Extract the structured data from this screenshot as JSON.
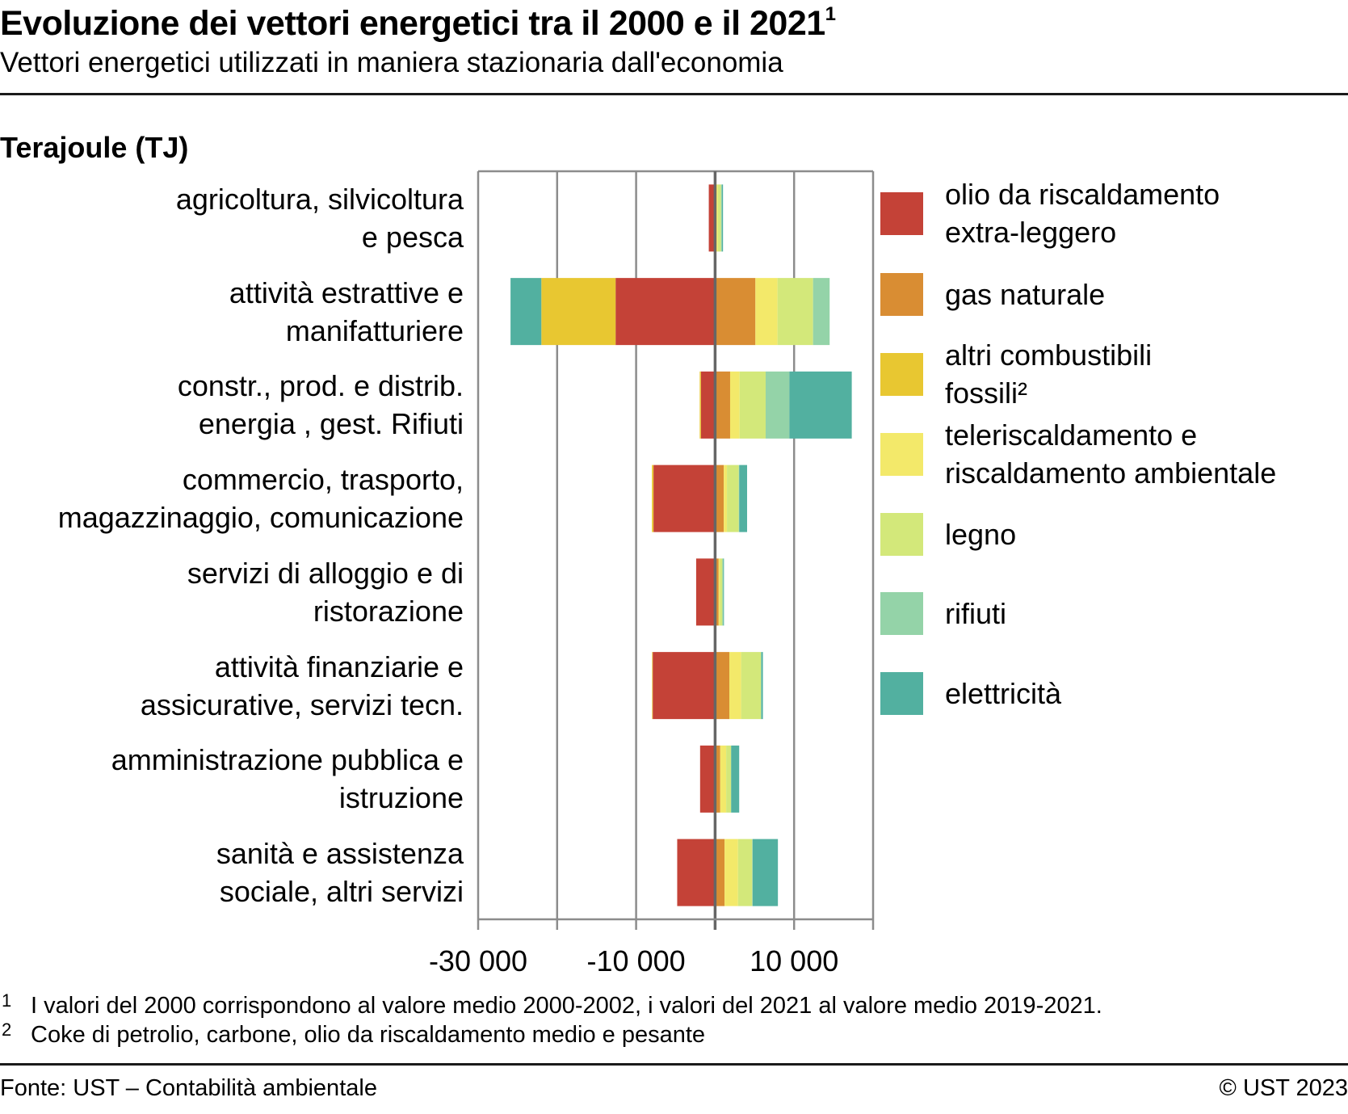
{
  "header": {
    "title": "Evoluzione dei vettori energetici tra il 2000 e il 2021",
    "title_footnote_mark": "1",
    "subtitle": "Vettori energetici utilizzati in maniera stazionaria dall'economia"
  },
  "chart_data": {
    "type": "bar",
    "orientation": "horizontal",
    "stacked": true,
    "title": "Evoluzione dei vettori energetici tra il 2000 e il 2021",
    "subtitle": "Vettori energetici utilizzati in maniera stazionaria dall'economia",
    "unit_label": "Terajoule (TJ)",
    "xlabel": "",
    "ylabel": "",
    "xlim": [
      -30000,
      20000
    ],
    "x_ticks": [
      -30000,
      -20000,
      -10000,
      0,
      10000,
      20000
    ],
    "x_tick_labels": [
      {
        "value": -30000,
        "label": "-30 000"
      },
      {
        "value": -10000,
        "label": "-10 000"
      },
      {
        "value": 10000,
        "label": "10 000"
      }
    ],
    "grid": true,
    "legend_position": "right",
    "categories": [
      [
        "agricoltura, silvicoltura",
        "e pesca"
      ],
      [
        "attività estrattive e",
        "manifatturiere"
      ],
      [
        "constr., prod. e distrib.",
        "energia , gest. Rifiuti"
      ],
      [
        "commercio, trasporto,",
        "magazzinaggio, comunicazione"
      ],
      [
        "servizi di alloggio e di",
        "ristorazione"
      ],
      [
        "attività finanziarie e",
        "assicurative, servizi tecn."
      ],
      [
        "amministrazione pubblica e",
        "istruzione"
      ],
      [
        "sanità e assistenza",
        "sociale, altri servizi"
      ]
    ],
    "series": [
      {
        "name": "olio da riscaldamento extra-leggero",
        "legend_lines": [
          "olio da riscaldamento",
          "extra-leggero"
        ],
        "color": "#c44237",
        "values": [
          -800,
          -12600,
          -1800,
          -7800,
          -2400,
          -7900,
          -1900,
          -4800
        ]
      },
      {
        "name": "gas naturale",
        "legend_lines": [
          "gas naturale"
        ],
        "color": "#d98d33",
        "values": [
          50,
          5100,
          1900,
          1100,
          450,
          1800,
          650,
          1200
        ]
      },
      {
        "name": "altri combustibili fossili²",
        "legend_lines": [
          "altri combustibili",
          "fossili²"
        ],
        "color": "#e8c731",
        "values": [
          0,
          -9400,
          -150,
          -200,
          0,
          -80,
          0,
          0
        ]
      },
      {
        "name": "teleriscaldamento e riscaldamento ambientale",
        "legend_lines": [
          "teleriscaldamento e",
          "riscaldamento ambientale"
        ],
        "color": "#f3e96a",
        "values": [
          300,
          2800,
          1200,
          400,
          170,
          1500,
          750,
          1700
        ]
      },
      {
        "name": "legno",
        "legend_lines": [
          "legno"
        ],
        "color": "#d3e87a",
        "values": [
          400,
          4500,
          3300,
          1500,
          300,
          2500,
          600,
          1800
        ]
      },
      {
        "name": "rifiuti",
        "legend_lines": [
          "rifiuti"
        ],
        "color": "#94d3a8",
        "values": [
          100,
          2100,
          3000,
          50,
          100,
          50,
          50,
          50
        ]
      },
      {
        "name": "elettricità",
        "legend_lines": [
          "elettricità"
        ],
        "color": "#52b0a0",
        "values": [
          150,
          -3900,
          7900,
          1000,
          100,
          200,
          1000,
          3200
        ]
      }
    ]
  },
  "footnotes": [
    {
      "mark": "1",
      "text": "I valori del 2000 corrispondono al valore medio 2000-2002, i valori del 2021 al valore medio 2019-2021."
    },
    {
      "mark": "2",
      "text": "Coke di petrolio, carbone, olio da riscaldamento medio e pesante"
    }
  ],
  "footer": {
    "source": "Fonte: UST – Contabilità ambientale",
    "copyright": "© UST 2023"
  }
}
